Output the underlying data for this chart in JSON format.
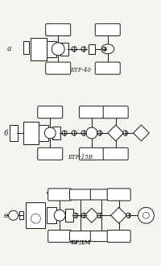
{
  "bg_color": "#f5f5f0",
  "line_color": "#1a1a1a",
  "diagrams": [
    {
      "label": "а",
      "title": "БТР-40"
    },
    {
      "label": "б",
      "title": "БТР-15В"
    },
    {
      "label": "в",
      "title": "БРДМ"
    }
  ],
  "lw": 0.7,
  "title_fontsize": 5.0,
  "label_fontsize": 6.5,
  "figsize": [
    2.0,
    3.3
  ],
  "dpi": 100
}
